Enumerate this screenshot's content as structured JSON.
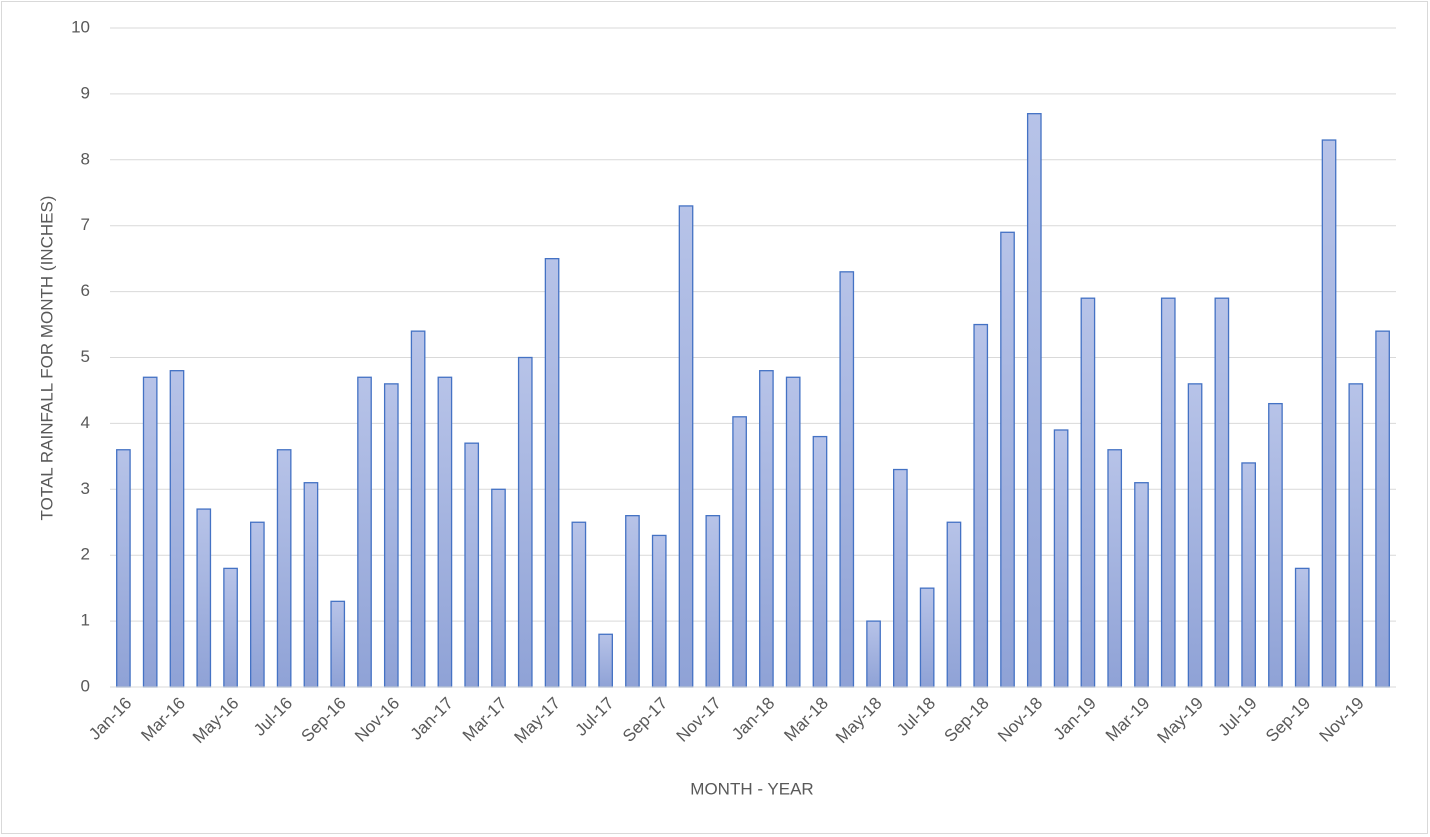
{
  "chart_data": {
    "type": "bar",
    "x_label": "MONTH - YEAR",
    "y_label": "TOTAL RAINFALL FOR MONTH (INCHES)",
    "categories": [
      "Jan-16",
      null,
      "Mar-16",
      null,
      "May-16",
      null,
      "Jul-16",
      null,
      "Sep-16",
      null,
      "Nov-16",
      null,
      "Jan-17",
      null,
      "Mar-17",
      null,
      "May-17",
      null,
      "Jul-17",
      null,
      "Sep-17",
      null,
      "Nov-17",
      null,
      "Jan-18",
      null,
      "Mar-18",
      null,
      "May-18",
      null,
      "Jul-18",
      null,
      "Sep-18",
      null,
      "Nov-18",
      null,
      "Jan-19",
      null,
      "Mar-19",
      null,
      "May-19",
      null,
      "Jul-19",
      null,
      "Sep-19",
      null,
      "Nov-19",
      null
    ],
    "values": [
      3.6,
      4.7,
      4.8,
      2.7,
      1.8,
      2.5,
      3.6,
      3.1,
      1.3,
      4.7,
      4.6,
      5.4,
      4.7,
      3.7,
      3.0,
      5.0,
      6.5,
      2.5,
      0.8,
      2.6,
      2.3,
      7.3,
      2.6,
      4.1,
      4.8,
      4.7,
      3.8,
      6.3,
      1.0,
      3.3,
      1.5,
      2.5,
      5.5,
      6.9,
      8.7,
      3.9,
      5.9,
      3.6,
      3.1,
      5.9,
      4.6,
      5.9,
      3.4,
      4.3,
      1.8,
      8.3,
      4.6,
      5.4
    ],
    "color": "#a9b8e2",
    "edge_color": "#4472c4",
    "ylim": [
      0,
      10
    ],
    "yticks": [
      0,
      1,
      2,
      3,
      4,
      5,
      6,
      7,
      8,
      9,
      10
    ],
    "grid": true
  }
}
